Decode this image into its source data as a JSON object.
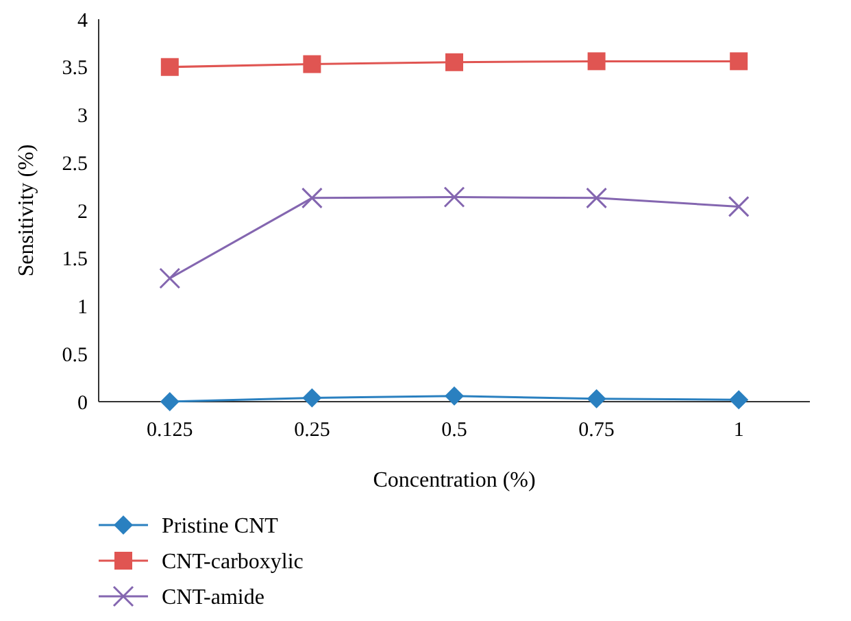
{
  "chart_data": {
    "type": "line",
    "xlabel": "Concentration (%)",
    "ylabel": "Sensitivity (%)",
    "categories": [
      "0.125",
      "0.25",
      "0.5",
      "0.75",
      "1"
    ],
    "series": [
      {
        "name": "Pristine CNT",
        "color": "#2a80c0",
        "marker": "diamond",
        "values": [
          0,
          0.04,
          0.06,
          0.03,
          0.02
        ]
      },
      {
        "name": "CNT-carboxylic",
        "color": "#e05552",
        "marker": "square",
        "values": [
          3.5,
          3.53,
          3.55,
          3.56,
          3.56
        ]
      },
      {
        "name": "CNT-amide",
        "color": "#8466b0",
        "marker": "cross",
        "values": [
          1.29,
          2.13,
          2.14,
          2.13,
          2.04
        ]
      }
    ],
    "ylim": [
      0,
      4
    ],
    "yticks": [
      0,
      0.5,
      1,
      1.5,
      2,
      2.5,
      3,
      3.5,
      4
    ],
    "grid": false,
    "legend": "bottom left"
  }
}
